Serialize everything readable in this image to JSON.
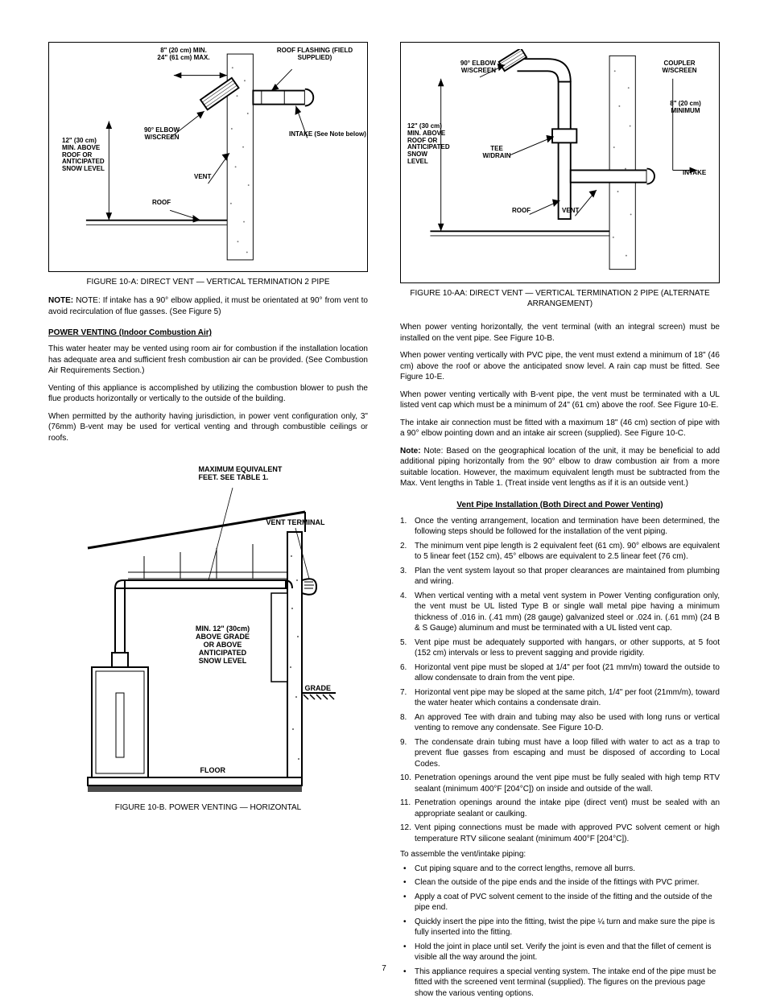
{
  "figures": {
    "a": {
      "caption": "FIGURE 10-A: DIRECT VENT — VERTICAL TERMINATION\n2 PIPE",
      "labels": {
        "dim_top": "8\" (20 cm) MIN.\n24\" (61 cm) MAX.",
        "roof_flashing": "ROOF FLASHING\n(FIELD SUPPLIED)",
        "clean": "12\" (30 cm) MIN.\nABOVE ROOF OR\nANTICIPATED SNOW\nLEVEL",
        "screen": "90° ELBOW\nW/SCREEN",
        "vent": "VENT",
        "roof": "ROOF",
        "intake": "INTAKE (See Note below)"
      }
    },
    "aa": {
      "caption": "FIGURE 10-AA: DIRECT VENT — VERTICAL TERMINATION\n2 PIPE (ALTERNATE ARRANGEMENT)",
      "labels": {
        "elbow": "90° ELBOW\nW/SCREEN",
        "tee": "TEE\nW/DRAIN",
        "twelve": "12\" (30 cm) MIN.\nABOVE ROOF OR\nANTICIPATED\nSNOW LEVEL",
        "roof": "ROOF",
        "vent": "VENT",
        "coupler": "COUPLER\nW/SCREEN",
        "min8": "8\" (20 cm)\nMINIMUM",
        "intake": "INTAKE"
      }
    },
    "b": {
      "caption": "FIGURE 10-B. POWER VENTING — HORIZONTAL",
      "labels": {
        "maxeq": "MAXIMUM EQUIVALENT\nFEET. SEE TABLE 1.",
        "term": "VENT TERMINAL",
        "snow": "MIN. 12\" (30cm)\nABOVE GRADE\nOR\nABOVE\nANTICIPATED\nSNOW LEVEL",
        "grade": "GRADE",
        "floor": "FLOOR"
      }
    }
  },
  "left": {
    "note": "NOTE: If intake has a 90° elbow applied, it must be orientated at 90° from vent to avoid recirculation of flue gasses. (See Figure 5)",
    "hdr": "POWER VENTING (Indoor Combustion Air)",
    "p1": "This water heater may be vented using room air for combustion if the installation location has adequate area and sufficient fresh combustion air can be provided. (See Combustion Air Requirements Section.)",
    "p2": "Venting of this appliance is accomplished by utilizing the combustion blower to push the flue products horizontally or vertically to the outside of the building.",
    "p3": "When permitted by the authority having jurisdiction, in power vent configuration only, 3\" (76mm) B-vent may be used for vertical venting and through combustible ceilings or roofs."
  },
  "right": {
    "p1": "When power venting horizontally, the vent terminal (with an integral screen) must be installed on the vent pipe. See Figure 10-B.",
    "p2": "When power venting vertically with PVC pipe, the vent must extend a minimum of 18\" (46 cm) above the roof or above the anticipated snow level. A rain cap must be fitted. See Figure 10-E.",
    "p3": "When power venting vertically with B-vent pipe, the vent must be terminated with a UL listed vent cap which must be a minimum of 24\" (61 cm) above the roof. See Figure 10-E.",
    "p4": "The intake air connection must be fitted with a maximum 18\" (46 cm) section of pipe with a 90° elbow pointing down and an intake air screen (supplied). See Figure 10-C.",
    "p5": "Note: Based on the geographical location of the unit, it may be beneficial to add additional piping horizontally from the 90° elbow to draw combustion air from a more suitable location. However, the maximum equivalent length must be subtracted from the Max. Vent lengths in Table 1. (Treat inside vent lengths as if it is an outside vent.)",
    "hdr": "Vent Pipe Installation (Both Direct and Power Venting)",
    "items": [
      "Once the venting arrangement, location and termination have been determined, the following steps should be followed for the installation of the vent piping.",
      "The minimum vent pipe length is 2 equivalent feet (61 cm). 90° elbows are equivalent to 5 linear feet (152 cm), 45° elbows are equivalent to 2.5 linear feet (76 cm).",
      "Plan the vent system layout so that proper clearances are maintained from plumbing and wiring.",
      "When vertical venting with a metal vent system in Power Venting configuration only, the vent must be UL listed Type B or single wall metal pipe having a minimum thickness of .016 in. (.41 mm) (28 gauge) galvanized steel or .024 in. (.61 mm) (24 B & S Gauge) aluminum and must be terminated with a UL listed vent cap.",
      "Vent pipe must be adequately supported with hangars, or other supports, at 5 foot (152 cm) intervals or less to prevent sagging and provide rigidity.",
      "Horizontal vent pipe must be sloped at 1/4\" per foot (21 mm/m) toward the outside to allow condensate to drain from the vent pipe.",
      "Horizontal vent pipe may be sloped at the same pitch, 1/4\" per foot (21mm/m), toward the water heater which contains a condensate drain.",
      "An approved Tee with drain and tubing may also be used with long runs or vertical venting to remove any condensate. See Figure 10-D.",
      "The condensate drain tubing must have a loop filled with water to act as a trap to prevent flue gasses from escaping and must be disposed of according to Local Codes.",
      "Penetration openings around the vent pipe must be fully sealed with high temp RTV sealant (minimum 400°F [204°C]) on inside and outside of the wall.",
      "Penetration openings around the intake pipe (direct vent) must be sealed with an appropriate sealant or caulking.",
      "Vent piping connections must be made with approved PVC solvent cement or high temperature RTV silicone sealant (minimum 400°F [204°C])."
    ],
    "bullets_intro": "To assemble the vent/intake piping:",
    "bullets": [
      "Cut piping square and to the correct lengths, remove all burrs.",
      "Clean the outside of the pipe ends and the inside of the fittings with PVC primer.",
      "Apply a coat of PVC solvent cement to the inside of the fitting and the outside of the pipe end.",
      "Quickly insert the pipe into the fitting, twist the pipe ¼ turn and make sure the pipe is fully inserted into the fitting.",
      "Hold the joint in place until set. Verify the joint is even and that the fillet of cement is visible all the way around the joint.",
      "This appliance requires a special venting system. The intake end of the pipe must be fitted with the screened vent terminal (supplied). The figures on the previous page show the various venting options."
    ]
  },
  "page_number": "7",
  "colors": {
    "line": "#000000",
    "speckle": "#777777",
    "bg": "#ffffff"
  }
}
